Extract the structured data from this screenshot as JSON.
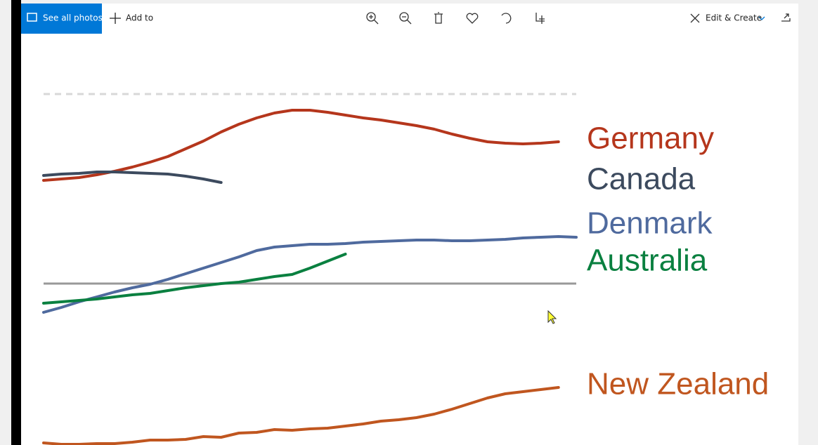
{
  "toolbar": {
    "back": "See all photos",
    "add": "Add to",
    "edit": "Edit & Create"
  },
  "chart_data": {
    "type": "line",
    "x": [
      0,
      1,
      2,
      3,
      4,
      5,
      6,
      7,
      8,
      9,
      10,
      11,
      12,
      13,
      14,
      15,
      16,
      17,
      18,
      19,
      20,
      21,
      22,
      23,
      24,
      25,
      26,
      27,
      28,
      29,
      30
    ],
    "xlim": [
      0,
      30
    ],
    "ylim": [
      0,
      100
    ],
    "reference_lines": [
      {
        "value": 100,
        "style": "dashed"
      },
      {
        "value": 46,
        "style": "solid"
      }
    ],
    "series": [
      {
        "name": "Germany",
        "color": "#b5361c",
        "values": [
          75.4,
          75.8,
          76.2,
          77,
          78,
          79.2,
          80.6,
          82.2,
          84.4,
          86.6,
          89.2,
          91.4,
          93.2,
          94.6,
          95.4,
          95.4,
          94.8,
          94,
          93.2,
          92.6,
          91.8,
          91,
          90,
          88.6,
          87.4,
          86.4,
          86,
          85.8,
          86,
          86.4,
          null
        ]
      },
      {
        "name": "Canada",
        "color": "#3c4a5e",
        "values": [
          76.8,
          77.2,
          77.4,
          77.8,
          77.8,
          77.6,
          77.4,
          77.2,
          76.6,
          75.8,
          74.8,
          null,
          null,
          null,
          null,
          null,
          null,
          null,
          null,
          null,
          null,
          null,
          null,
          null,
          null,
          null,
          null,
          null,
          null,
          null,
          null
        ]
      },
      {
        "name": "Denmark",
        "color": "#4f6a9e",
        "values": [
          37.8,
          39.2,
          40.8,
          42.2,
          43.6,
          44.8,
          45.8,
          47.2,
          48.8,
          50.4,
          52,
          53.6,
          55.4,
          56.4,
          56.8,
          57.2,
          57.2,
          57.4,
          57.8,
          58,
          58.2,
          58.4,
          58.4,
          58.2,
          58.2,
          58.4,
          58.6,
          59,
          59.2,
          59.4,
          59.2
        ]
      },
      {
        "name": "Australia",
        "color": "#0a8040",
        "values": [
          40.4,
          40.8,
          41.2,
          41.6,
          42.2,
          42.8,
          43.2,
          44,
          44.8,
          45.4,
          46,
          46.4,
          47.2,
          48,
          48.6,
          50.4,
          52.4,
          54.4,
          null,
          null,
          null,
          null,
          null,
          null,
          null,
          null,
          null,
          null,
          null,
          null,
          null
        ]
      },
      {
        "name": "New Zealand",
        "color": "#c0561f",
        "values": [
          0.6,
          0.2,
          0.2,
          0.4,
          0.4,
          0.8,
          1.4,
          1.4,
          1.6,
          2.4,
          2.2,
          3.4,
          3.6,
          4.4,
          4.2,
          4.6,
          4.8,
          5.4,
          6,
          6.8,
          7.2,
          7.8,
          8.8,
          10.2,
          11.8,
          13.4,
          14.6,
          15.2,
          15.8,
          16.4,
          null
        ]
      }
    ]
  }
}
